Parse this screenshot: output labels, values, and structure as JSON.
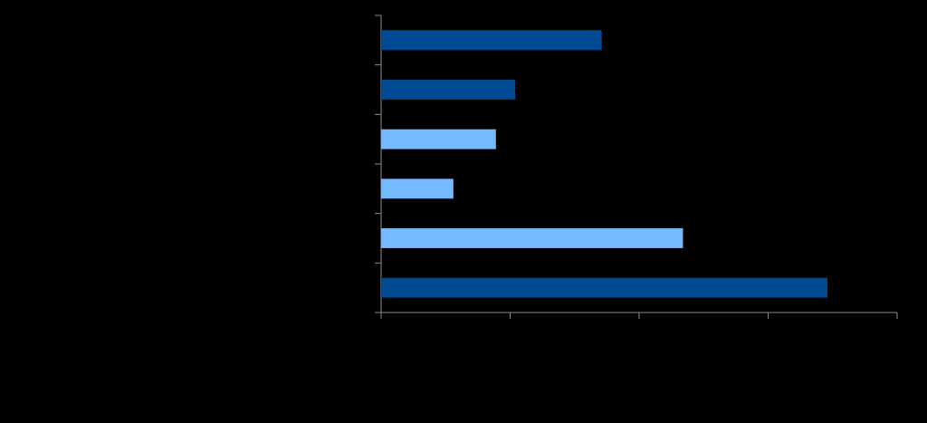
{
  "chart_data": {
    "type": "barh",
    "categories": [
      null,
      null,
      null,
      null,
      null,
      null
    ],
    "values": [
      1.71,
      1.04,
      0.89,
      0.56,
      2.34,
      3.46
    ],
    "colors": [
      "#004a93",
      "#004a93",
      "#75baff",
      "#75baff",
      "#75baff",
      "#004a93"
    ],
    "xlim": [
      0,
      4
    ],
    "xticks": [
      0,
      1,
      2,
      3,
      4
    ]
  }
}
